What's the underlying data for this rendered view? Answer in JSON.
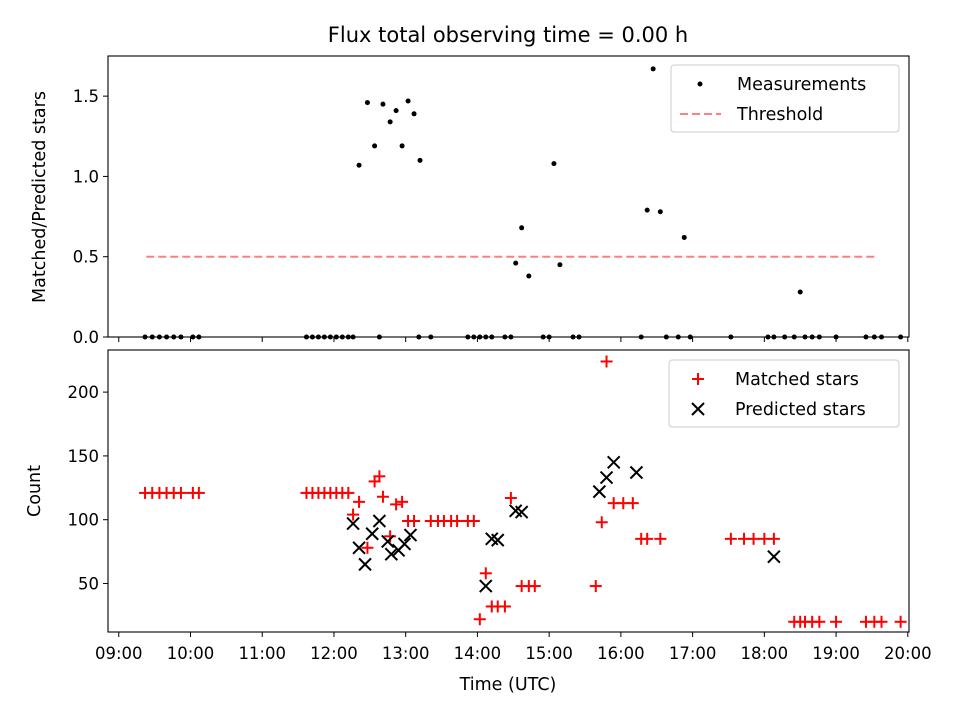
{
  "title": "Flux total observing time = 0.00 h",
  "chart_data": [
    {
      "type": "scatter",
      "ylabel": "Matched/Predicted stars",
      "ylim": [
        0,
        1.75
      ],
      "yticks": [
        "0.0",
        "0.5",
        "1.0",
        "1.5"
      ],
      "legend_position": "top-right",
      "threshold": {
        "name": "Threshold",
        "y": 0.5,
        "x_from": "09:23",
        "x_to": "19:32",
        "color": "#ff7f7f"
      },
      "series": [
        {
          "name": "Measurements",
          "color": "#000000",
          "points": [
            [
              "09:22",
              0
            ],
            [
              "09:28",
              0
            ],
            [
              "09:34",
              0
            ],
            [
              "09:40",
              0
            ],
            [
              "09:46",
              0
            ],
            [
              "09:52",
              0
            ],
            [
              "10:02",
              0
            ],
            [
              "10:07",
              0
            ],
            [
              "11:37",
              0
            ],
            [
              "11:42",
              0
            ],
            [
              "11:47",
              0
            ],
            [
              "11:52",
              0
            ],
            [
              "11:57",
              0
            ],
            [
              "12:02",
              0
            ],
            [
              "12:07",
              0
            ],
            [
              "12:12",
              0
            ],
            [
              "12:16",
              0
            ],
            [
              "12:21",
              1.07
            ],
            [
              "12:28",
              1.46
            ],
            [
              "12:34",
              1.19
            ],
            [
              "12:38",
              0
            ],
            [
              "12:41",
              1.45
            ],
            [
              "12:47",
              1.34
            ],
            [
              "12:52",
              1.41
            ],
            [
              "12:57",
              1.19
            ],
            [
              "13:02",
              1.47
            ],
            [
              "13:07",
              1.39
            ],
            [
              "13:11",
              0
            ],
            [
              "13:12",
              1.1
            ],
            [
              "13:21",
              0
            ],
            [
              "13:52",
              0
            ],
            [
              "13:57",
              0
            ],
            [
              "14:02",
              0
            ],
            [
              "14:07",
              0
            ],
            [
              "14:12",
              0
            ],
            [
              "14:23",
              0
            ],
            [
              "14:28",
              0
            ],
            [
              "14:32",
              0.46
            ],
            [
              "14:37",
              0.68
            ],
            [
              "14:43",
              0.38
            ],
            [
              "14:55",
              0
            ],
            [
              "15:00",
              0
            ],
            [
              "15:04",
              1.08
            ],
            [
              "15:09",
              0.45
            ],
            [
              "15:20",
              0
            ],
            [
              "15:25",
              0
            ],
            [
              "16:17",
              0
            ],
            [
              "16:22",
              0.79
            ],
            [
              "16:27",
              1.67
            ],
            [
              "16:33",
              0.78
            ],
            [
              "16:38",
              0
            ],
            [
              "16:48",
              0
            ],
            [
              "16:53",
              0.62
            ],
            [
              "16:58",
              0
            ],
            [
              "17:32",
              0
            ],
            [
              "18:03",
              0
            ],
            [
              "18:08",
              0
            ],
            [
              "18:17",
              0
            ],
            [
              "18:25",
              0
            ],
            [
              "18:30",
              0.28
            ],
            [
              "18:34",
              0
            ],
            [
              "18:40",
              0
            ],
            [
              "18:46",
              0
            ],
            [
              "19:00",
              0
            ],
            [
              "19:25",
              0
            ],
            [
              "19:32",
              0
            ],
            [
              "19:38",
              0
            ],
            [
              "19:54",
              0
            ]
          ]
        }
      ]
    },
    {
      "type": "scatter",
      "xlabel": "Time (UTC)",
      "ylabel": "Count",
      "ylim": [
        12,
        233
      ],
      "yticks": [
        "50",
        "100",
        "150",
        "200"
      ],
      "xlim": [
        "08:51",
        "20:01"
      ],
      "xticks": [
        "09:00",
        "10:00",
        "11:00",
        "12:00",
        "13:00",
        "14:00",
        "15:00",
        "16:00",
        "17:00",
        "18:00",
        "19:00",
        "20:00"
      ],
      "legend_position": "top-right",
      "series": [
        {
          "name": "Matched stars",
          "marker": "+",
          "color": "#ff0000",
          "points": [
            [
              "09:22",
              121
            ],
            [
              "09:28",
              121
            ],
            [
              "09:34",
              121
            ],
            [
              "09:40",
              121
            ],
            [
              "09:46",
              121
            ],
            [
              "09:52",
              121
            ],
            [
              "10:02",
              121
            ],
            [
              "10:07",
              121
            ],
            [
              "11:37",
              121
            ],
            [
              "11:42",
              121
            ],
            [
              "11:47",
              121
            ],
            [
              "11:52",
              121
            ],
            [
              "11:57",
              121
            ],
            [
              "12:02",
              121
            ],
            [
              "12:07",
              121
            ],
            [
              "12:12",
              121
            ],
            [
              "12:16",
              104
            ],
            [
              "12:21",
              114
            ],
            [
              "12:28",
              78
            ],
            [
              "12:34",
              130
            ],
            [
              "12:38",
              134
            ],
            [
              "12:41",
              118
            ],
            [
              "12:47",
              87
            ],
            [
              "12:52",
              112
            ],
            [
              "12:57",
              114
            ],
            [
              "13:02",
              99
            ],
            [
              "13:07",
              99
            ],
            [
              "13:21",
              99
            ],
            [
              "13:27",
              99
            ],
            [
              "13:32",
              99
            ],
            [
              "13:38",
              99
            ],
            [
              "13:43",
              99
            ],
            [
              "13:52",
              99
            ],
            [
              "13:57",
              99
            ],
            [
              "14:02",
              22
            ],
            [
              "14:07",
              58
            ],
            [
              "14:12",
              32
            ],
            [
              "14:17",
              32
            ],
            [
              "14:23",
              32
            ],
            [
              "14:28",
              117
            ],
            [
              "14:37",
              48
            ],
            [
              "14:43",
              48
            ],
            [
              "14:48",
              48
            ],
            [
              "15:39",
              48
            ],
            [
              "15:44",
              98
            ],
            [
              "15:48",
              224
            ],
            [
              "15:54",
              113
            ],
            [
              "16:02",
              113
            ],
            [
              "16:10",
              113
            ],
            [
              "16:17",
              85
            ],
            [
              "16:22",
              85
            ],
            [
              "16:33",
              85
            ],
            [
              "17:32",
              85
            ],
            [
              "17:43",
              85
            ],
            [
              "17:51",
              85
            ],
            [
              "18:00",
              85
            ],
            [
              "18:08",
              85
            ],
            [
              "18:25",
              20
            ],
            [
              "18:30",
              20
            ],
            [
              "18:34",
              20
            ],
            [
              "18:40",
              20
            ],
            [
              "18:46",
              20
            ],
            [
              "19:00",
              20
            ],
            [
              "19:25",
              20
            ],
            [
              "19:32",
              20
            ],
            [
              "19:38",
              20
            ],
            [
              "19:54",
              20
            ]
          ]
        },
        {
          "name": "Predicted stars",
          "marker": "x",
          "color": "#000000",
          "points": [
            [
              "12:16",
              97
            ],
            [
              "12:21",
              78
            ],
            [
              "12:26",
              65
            ],
            [
              "12:32",
              89
            ],
            [
              "12:38",
              99
            ],
            [
              "12:45",
              83
            ],
            [
              "12:48",
              73
            ],
            [
              "12:54",
              76
            ],
            [
              "12:59",
              81
            ],
            [
              "13:04",
              88
            ],
            [
              "14:07",
              48
            ],
            [
              "14:12",
              85
            ],
            [
              "14:17",
              84
            ],
            [
              "14:32",
              107
            ],
            [
              "14:37",
              106
            ],
            [
              "15:42",
              122
            ],
            [
              "15:48",
              133
            ],
            [
              "15:54",
              145
            ],
            [
              "16:13",
              137
            ],
            [
              "18:08",
              71
            ]
          ]
        }
      ]
    }
  ]
}
